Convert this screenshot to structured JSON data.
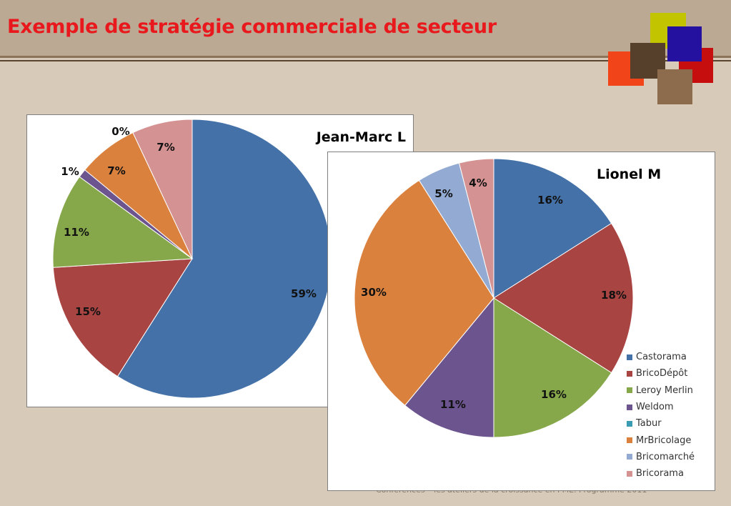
{
  "header": {
    "title": "Exemple de stratégie commerciale de secteur"
  },
  "footer": {
    "text": "Conférences – les ateliers de la croissance en PME. Programme 2011"
  },
  "colors": {
    "Castorama": "#4471a7",
    "BricoDépôt": "#a84442",
    "Leroy Merlin": "#86a84a",
    "Weldom": "#6c558f",
    "Tabur": "#3a9bb5",
    "MrBricolage": "#db813e",
    "Bricomarché": "#93abd3",
    "Bricorama": "#d49293"
  },
  "chart_data": [
    {
      "type": "pie",
      "title": "Jean-Marc L",
      "categories": [
        "Castorama",
        "BricoDépôt",
        "Leroy Merlin",
        "Weldom",
        "Tabur",
        "MrBricolage",
        "Bricomarché",
        "Bricorama"
      ],
      "values": [
        59,
        15,
        11,
        1,
        0,
        7,
        0,
        7
      ],
      "labels": [
        "59%",
        "15%",
        "11%",
        "1%",
        "0%",
        "7%",
        "",
        "7%"
      ]
    },
    {
      "type": "pie",
      "title": "Lionel M",
      "categories": [
        "Castorama",
        "BricoDépôt",
        "Leroy Merlin",
        "Weldom",
        "Tabur",
        "MrBricolage",
        "Bricomarché",
        "Bricorama"
      ],
      "values": [
        16,
        18,
        16,
        11,
        0,
        30,
        5,
        4
      ],
      "labels": [
        "16%",
        "18%",
        "16%",
        "11%",
        "",
        "30%",
        "5%",
        "4%"
      ],
      "legend": [
        "Castorama",
        "BricoDépôt",
        "Leroy Merlin",
        "Weldom",
        "Tabur",
        "MrBricolage",
        "Bricomarché",
        "Bricorama"
      ],
      "legend_position": "right"
    }
  ]
}
